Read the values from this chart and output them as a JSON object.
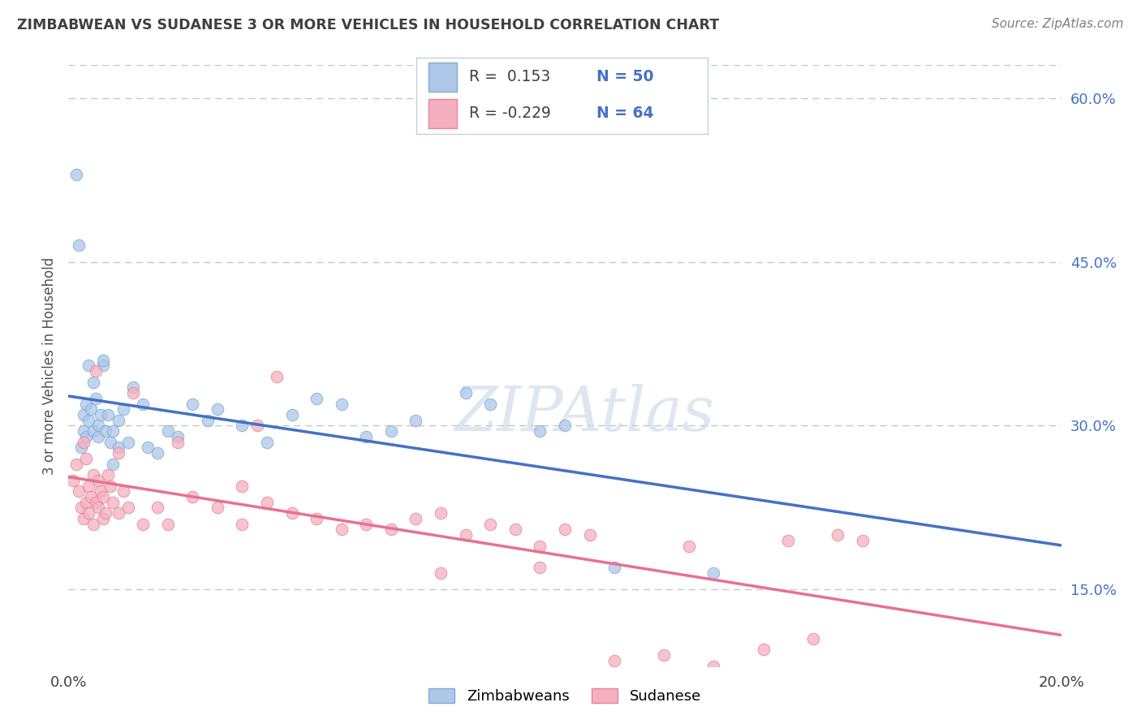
{
  "title": "ZIMBABWEAN VS SUDANESE 3 OR MORE VEHICLES IN HOUSEHOLD CORRELATION CHART",
  "source": "Source: ZipAtlas.com",
  "ylabel": "3 or more Vehicles in Household",
  "xlim": [
    0.0,
    20.0
  ],
  "ylim": [
    8.0,
    63.0
  ],
  "x_ticks": [
    0.0,
    5.0,
    10.0,
    15.0,
    20.0
  ],
  "y_ticks_right": [
    15.0,
    30.0,
    45.0,
    60.0
  ],
  "zim_color": "#aec6e8",
  "sud_color": "#f4b0c0",
  "zim_edge": "#7bafd4",
  "sud_edge": "#e8849a",
  "zim_line_color": "#4472c4",
  "sud_line_color": "#e87090",
  "dashed_line_color": "#b0b8c0",
  "watermark": "ZIPAtlas",
  "watermark_color": "#c8d8e8",
  "background_color": "#ffffff",
  "grid_color": "#c0c8d0",
  "title_color": "#404040",
  "source_color": "#808080",
  "zim_scatter_x": [
    0.15,
    0.2,
    0.25,
    0.3,
    0.3,
    0.35,
    0.35,
    0.4,
    0.4,
    0.45,
    0.5,
    0.5,
    0.55,
    0.6,
    0.6,
    0.65,
    0.7,
    0.7,
    0.75,
    0.8,
    0.85,
    0.9,
    1.0,
    1.0,
    1.1,
    1.2,
    1.3,
    1.5,
    1.6,
    1.8,
    2.0,
    2.2,
    2.5,
    2.8,
    3.0,
    3.5,
    4.0,
    4.5,
    5.0,
    5.5,
    6.0,
    6.5,
    7.0,
    8.0,
    8.5,
    9.5,
    10.0,
    11.0,
    13.0,
    0.9
  ],
  "zim_scatter_y": [
    53.0,
    46.5,
    28.0,
    29.5,
    31.0,
    29.0,
    32.0,
    30.5,
    35.5,
    31.5,
    29.5,
    34.0,
    32.5,
    29.0,
    30.0,
    31.0,
    35.5,
    36.0,
    29.5,
    31.0,
    28.5,
    29.5,
    28.0,
    30.5,
    31.5,
    28.5,
    33.5,
    32.0,
    28.0,
    27.5,
    29.5,
    29.0,
    32.0,
    30.5,
    31.5,
    30.0,
    28.5,
    31.0,
    32.5,
    32.0,
    29.0,
    29.5,
    30.5,
    33.0,
    32.0,
    29.5,
    30.0,
    17.0,
    16.5,
    26.5
  ],
  "sud_scatter_x": [
    0.1,
    0.15,
    0.2,
    0.25,
    0.3,
    0.3,
    0.35,
    0.35,
    0.4,
    0.4,
    0.45,
    0.5,
    0.5,
    0.55,
    0.6,
    0.6,
    0.65,
    0.7,
    0.7,
    0.75,
    0.8,
    0.85,
    0.9,
    1.0,
    1.0,
    1.1,
    1.2,
    1.5,
    1.8,
    2.0,
    2.5,
    3.0,
    3.5,
    3.5,
    4.0,
    4.5,
    5.0,
    5.5,
    6.0,
    6.5,
    7.0,
    7.5,
    8.0,
    8.5,
    9.0,
    9.5,
    10.0,
    10.5,
    11.0,
    12.0,
    12.5,
    13.0,
    14.0,
    14.5,
    15.0,
    15.5,
    16.0,
    0.55,
    1.3,
    2.2,
    3.8,
    4.2,
    7.5,
    9.5
  ],
  "sud_scatter_y": [
    25.0,
    26.5,
    24.0,
    22.5,
    21.5,
    28.5,
    23.0,
    27.0,
    24.5,
    22.0,
    23.5,
    21.0,
    25.5,
    23.0,
    22.5,
    25.0,
    24.0,
    23.5,
    21.5,
    22.0,
    25.5,
    24.5,
    23.0,
    22.0,
    27.5,
    24.0,
    22.5,
    21.0,
    22.5,
    21.0,
    23.5,
    22.5,
    21.0,
    24.5,
    23.0,
    22.0,
    21.5,
    20.5,
    21.0,
    20.5,
    21.5,
    22.0,
    20.0,
    21.0,
    20.5,
    19.0,
    20.5,
    20.0,
    8.5,
    9.0,
    19.0,
    8.0,
    9.5,
    19.5,
    10.5,
    20.0,
    19.5,
    35.0,
    33.0,
    28.5,
    30.0,
    34.5,
    16.5,
    17.0
  ]
}
